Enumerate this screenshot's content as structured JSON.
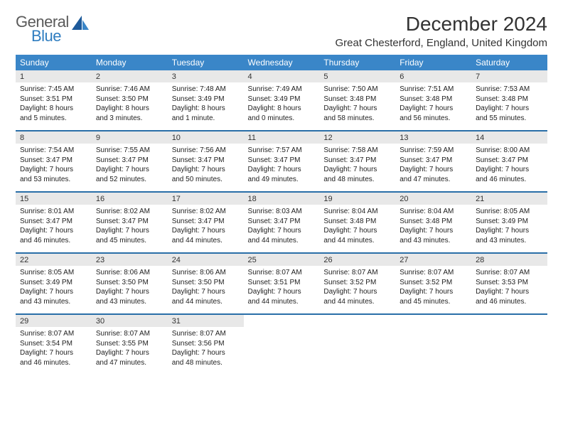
{
  "brand": {
    "general": "General",
    "blue": "Blue"
  },
  "title": "December 2024",
  "location": "Great Chesterford, England, United Kingdom",
  "colors": {
    "header_bg": "#3a86c8",
    "header_rule": "#2a6fa8",
    "daynum_bg": "#e8e8e8",
    "text": "#333333",
    "logo_gray": "#5a5a5a",
    "logo_blue": "#2f7dc0"
  },
  "weekdays": [
    "Sunday",
    "Monday",
    "Tuesday",
    "Wednesday",
    "Thursday",
    "Friday",
    "Saturday"
  ],
  "weeks": [
    {
      "nums": [
        "1",
        "2",
        "3",
        "4",
        "5",
        "6",
        "7"
      ],
      "cells": [
        {
          "sunrise": "7:45 AM",
          "sunset": "3:51 PM",
          "dl1": "Daylight: 8 hours",
          "dl2": "and 5 minutes."
        },
        {
          "sunrise": "7:46 AM",
          "sunset": "3:50 PM",
          "dl1": "Daylight: 8 hours",
          "dl2": "and 3 minutes."
        },
        {
          "sunrise": "7:48 AM",
          "sunset": "3:49 PM",
          "dl1": "Daylight: 8 hours",
          "dl2": "and 1 minute."
        },
        {
          "sunrise": "7:49 AM",
          "sunset": "3:49 PM",
          "dl1": "Daylight: 8 hours",
          "dl2": "and 0 minutes."
        },
        {
          "sunrise": "7:50 AM",
          "sunset": "3:48 PM",
          "dl1": "Daylight: 7 hours",
          "dl2": "and 58 minutes."
        },
        {
          "sunrise": "7:51 AM",
          "sunset": "3:48 PM",
          "dl1": "Daylight: 7 hours",
          "dl2": "and 56 minutes."
        },
        {
          "sunrise": "7:53 AM",
          "sunset": "3:48 PM",
          "dl1": "Daylight: 7 hours",
          "dl2": "and 55 minutes."
        }
      ]
    },
    {
      "nums": [
        "8",
        "9",
        "10",
        "11",
        "12",
        "13",
        "14"
      ],
      "cells": [
        {
          "sunrise": "7:54 AM",
          "sunset": "3:47 PM",
          "dl1": "Daylight: 7 hours",
          "dl2": "and 53 minutes."
        },
        {
          "sunrise": "7:55 AM",
          "sunset": "3:47 PM",
          "dl1": "Daylight: 7 hours",
          "dl2": "and 52 minutes."
        },
        {
          "sunrise": "7:56 AM",
          "sunset": "3:47 PM",
          "dl1": "Daylight: 7 hours",
          "dl2": "and 50 minutes."
        },
        {
          "sunrise": "7:57 AM",
          "sunset": "3:47 PM",
          "dl1": "Daylight: 7 hours",
          "dl2": "and 49 minutes."
        },
        {
          "sunrise": "7:58 AM",
          "sunset": "3:47 PM",
          "dl1": "Daylight: 7 hours",
          "dl2": "and 48 minutes."
        },
        {
          "sunrise": "7:59 AM",
          "sunset": "3:47 PM",
          "dl1": "Daylight: 7 hours",
          "dl2": "and 47 minutes."
        },
        {
          "sunrise": "8:00 AM",
          "sunset": "3:47 PM",
          "dl1": "Daylight: 7 hours",
          "dl2": "and 46 minutes."
        }
      ]
    },
    {
      "nums": [
        "15",
        "16",
        "17",
        "18",
        "19",
        "20",
        "21"
      ],
      "cells": [
        {
          "sunrise": "8:01 AM",
          "sunset": "3:47 PM",
          "dl1": "Daylight: 7 hours",
          "dl2": "and 46 minutes."
        },
        {
          "sunrise": "8:02 AM",
          "sunset": "3:47 PM",
          "dl1": "Daylight: 7 hours",
          "dl2": "and 45 minutes."
        },
        {
          "sunrise": "8:02 AM",
          "sunset": "3:47 PM",
          "dl1": "Daylight: 7 hours",
          "dl2": "and 44 minutes."
        },
        {
          "sunrise": "8:03 AM",
          "sunset": "3:47 PM",
          "dl1": "Daylight: 7 hours",
          "dl2": "and 44 minutes."
        },
        {
          "sunrise": "8:04 AM",
          "sunset": "3:48 PM",
          "dl1": "Daylight: 7 hours",
          "dl2": "and 44 minutes."
        },
        {
          "sunrise": "8:04 AM",
          "sunset": "3:48 PM",
          "dl1": "Daylight: 7 hours",
          "dl2": "and 43 minutes."
        },
        {
          "sunrise": "8:05 AM",
          "sunset": "3:49 PM",
          "dl1": "Daylight: 7 hours",
          "dl2": "and 43 minutes."
        }
      ]
    },
    {
      "nums": [
        "22",
        "23",
        "24",
        "25",
        "26",
        "27",
        "28"
      ],
      "cells": [
        {
          "sunrise": "8:05 AM",
          "sunset": "3:49 PM",
          "dl1": "Daylight: 7 hours",
          "dl2": "and 43 minutes."
        },
        {
          "sunrise": "8:06 AM",
          "sunset": "3:50 PM",
          "dl1": "Daylight: 7 hours",
          "dl2": "and 43 minutes."
        },
        {
          "sunrise": "8:06 AM",
          "sunset": "3:50 PM",
          "dl1": "Daylight: 7 hours",
          "dl2": "and 44 minutes."
        },
        {
          "sunrise": "8:07 AM",
          "sunset": "3:51 PM",
          "dl1": "Daylight: 7 hours",
          "dl2": "and 44 minutes."
        },
        {
          "sunrise": "8:07 AM",
          "sunset": "3:52 PM",
          "dl1": "Daylight: 7 hours",
          "dl2": "and 44 minutes."
        },
        {
          "sunrise": "8:07 AM",
          "sunset": "3:52 PM",
          "dl1": "Daylight: 7 hours",
          "dl2": "and 45 minutes."
        },
        {
          "sunrise": "8:07 AM",
          "sunset": "3:53 PM",
          "dl1": "Daylight: 7 hours",
          "dl2": "and 46 minutes."
        }
      ]
    },
    {
      "nums": [
        "29",
        "30",
        "31",
        "",
        "",
        "",
        ""
      ],
      "cells": [
        {
          "sunrise": "8:07 AM",
          "sunset": "3:54 PM",
          "dl1": "Daylight: 7 hours",
          "dl2": "and 46 minutes."
        },
        {
          "sunrise": "8:07 AM",
          "sunset": "3:55 PM",
          "dl1": "Daylight: 7 hours",
          "dl2": "and 47 minutes."
        },
        {
          "sunrise": "8:07 AM",
          "sunset": "3:56 PM",
          "dl1": "Daylight: 7 hours",
          "dl2": "and 48 minutes."
        },
        null,
        null,
        null,
        null
      ]
    }
  ]
}
